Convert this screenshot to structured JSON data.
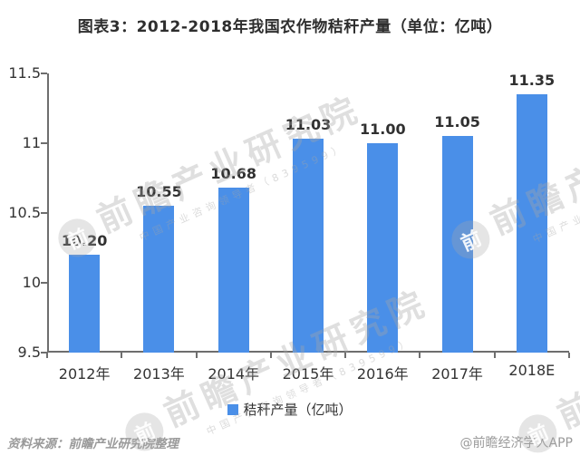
{
  "header": {
    "title": "图表3：2012-2018年我国农作物秸秆产量（单位：亿吨）"
  },
  "chart_data": {
    "type": "bar",
    "title": "图表3：2012-2018年我国农作物秸秆产量（单位：亿吨）",
    "categories": [
      "2012年",
      "2013年",
      "2014年",
      "2015年",
      "2016年",
      "2017年",
      "2018E"
    ],
    "values": [
      10.2,
      10.55,
      10.68,
      11.03,
      11.0,
      11.05,
      11.35
    ],
    "value_labels": [
      "10.20",
      "10.55",
      "10.68",
      "11.03",
      "11.00",
      "11.05",
      "11.35"
    ],
    "xlabel": "",
    "ylabel": "",
    "ylim": [
      9.5,
      11.5
    ],
    "yticks": [
      {
        "value": 9.5,
        "label": "9.5"
      },
      {
        "value": 10,
        "label": "10"
      },
      {
        "value": 10.5,
        "label": "10.5"
      },
      {
        "value": 11,
        "label": "11"
      },
      {
        "value": 11.5,
        "label": "11.5"
      }
    ],
    "grid": false,
    "legend": {
      "label": "秸秆产量（亿吨）",
      "position": "bottom"
    },
    "bar_color": "#4A8FE8",
    "axis_color": "#6e6e6e",
    "label_color": "#333333"
  },
  "footer": {
    "source": "资料来源：前瞻产业研究院整理",
    "credit": "@前瞻经济学人APP"
  },
  "watermark": {
    "logo_glyph": "前",
    "text": "前瞻产业研究院",
    "subtext": "中国产业咨询领导者（839599）"
  }
}
